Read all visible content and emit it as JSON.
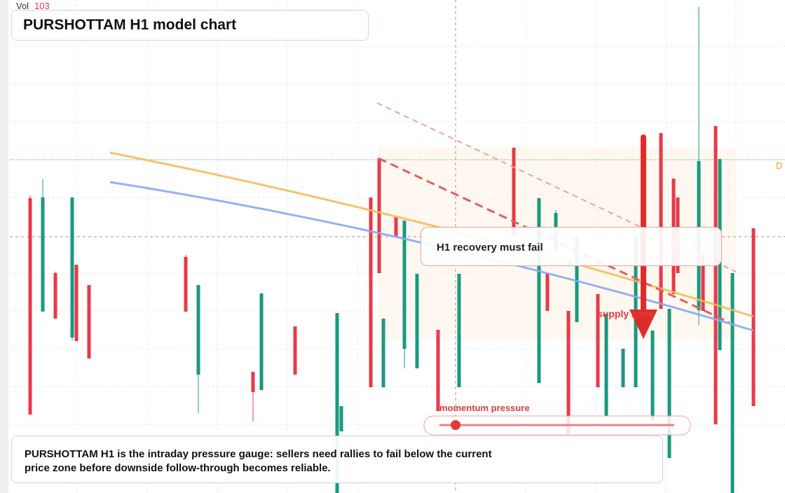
{
  "chart_data": {
    "type": "candlestick",
    "title": "PURSHOTTAM H1 model chart",
    "vol_label": "Vol",
    "vol_value": 103,
    "callout": "H1 recovery must fail",
    "zone_label": "supply zone",
    "gauge_label": "momentum pressure",
    "price_tag": "D",
    "note": "PURSHOTTAM H1 is the intraday pressure gauge: sellers need rallies to fail below the current price zone before downside follow-through becomes reliable.",
    "up_color": "#1a9980",
    "down_color": "#e8394a",
    "xlim": [
      0,
      186
    ],
    "ylim": [
      0,
      704
    ],
    "x": [
      7,
      10,
      13,
      17,
      18,
      21,
      44,
      47,
      60,
      62,
      70,
      80,
      81,
      88,
      90,
      91,
      94,
      96,
      99,
      104,
      109,
      122,
      128,
      130,
      132,
      135,
      137,
      142,
      144,
      148,
      151,
      155,
      157,
      159,
      160,
      161,
      166,
      167,
      170,
      171,
      174,
      179
    ],
    "open": [
      421,
      259,
      314,
      222,
      326,
      297,
      337,
      169,
      173,
      147,
      238,
      0,
      88,
      422,
      478,
      151,
      394,
      206,
      178,
      233,
      151,
      493,
      157,
      314,
      346,
      260,
      244,
      284,
      110,
      151,
      151,
      104,
      514,
      50,
      449,
      422,
      261,
      341,
      524,
      204,
      0,
      378
    ],
    "high": [
      425,
      448,
      316,
      422,
      326,
      297,
      340,
      297,
      173,
      285,
      238,
      257,
      124,
      422,
      478,
      249,
      394,
      389,
      313,
      233,
      313,
      493,
      421,
      314,
      404,
      260,
      366,
      284,
      256,
      206,
      367,
      232,
      514,
      263,
      449,
      422,
      694,
      341,
      524,
      477,
      314,
      378
    ],
    "low": [
      112,
      259,
      249,
      218,
      217,
      192,
      259,
      114,
      102,
      147,
      169,
      0,
      88,
      151,
      314,
      151,
      367,
      178,
      178,
      117,
      151,
      367,
      157,
      260,
      346,
      84,
      244,
      151,
      110,
      151,
      151,
      104,
      263,
      50,
      284,
      314,
      240,
      260,
      98,
      204,
      0,
      124
    ],
    "close": [
      112,
      422,
      249,
      422,
      217,
      192,
      259,
      297,
      144,
      285,
      169,
      257,
      124,
      151,
      314,
      249,
      367,
      389,
      313,
      117,
      313,
      367,
      421,
      260,
      400,
      84,
      366,
      151,
      256,
      206,
      367,
      232,
      263,
      263,
      284,
      314,
      474,
      260,
      98,
      477,
      314,
      124
    ]
  }
}
